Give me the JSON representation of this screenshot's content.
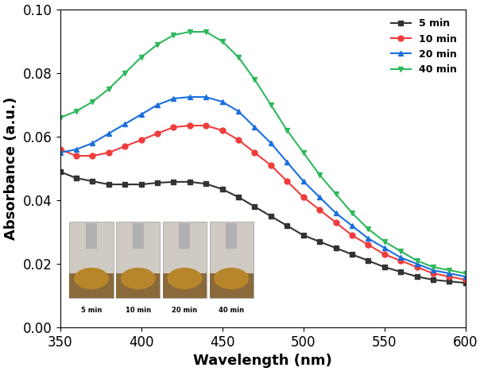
{
  "chart_data": {
    "type": "line",
    "x_label": "Wavelength (nm)",
    "y_label": "Absorbance (a.u.)",
    "x": [
      350,
      360,
      370,
      380,
      390,
      400,
      410,
      420,
      430,
      440,
      450,
      460,
      470,
      480,
      490,
      500,
      510,
      520,
      530,
      540,
      550,
      560,
      570,
      580,
      590,
      600
    ],
    "series": [
      {
        "name": "5 min",
        "color": "#333333",
        "marker": "square",
        "values": [
          0.049,
          0.047,
          0.046,
          0.045,
          0.045,
          0.045,
          0.0455,
          0.0458,
          0.0458,
          0.0452,
          0.0435,
          0.041,
          0.038,
          0.035,
          0.032,
          0.029,
          0.027,
          0.025,
          0.023,
          0.021,
          0.019,
          0.0175,
          0.016,
          0.015,
          0.0145,
          0.014
        ]
      },
      {
        "name": "10 min",
        "color": "#f03c3c",
        "marker": "circle",
        "values": [
          0.056,
          0.054,
          0.054,
          0.055,
          0.057,
          0.059,
          0.061,
          0.063,
          0.0635,
          0.0635,
          0.062,
          0.059,
          0.055,
          0.051,
          0.046,
          0.041,
          0.037,
          0.033,
          0.029,
          0.026,
          0.023,
          0.021,
          0.019,
          0.017,
          0.016,
          0.015
        ]
      },
      {
        "name": "20 min",
        "color": "#1a6fdf",
        "marker": "triangle_up",
        "values": [
          0.055,
          0.056,
          0.058,
          0.061,
          0.064,
          0.067,
          0.07,
          0.072,
          0.0725,
          0.0725,
          0.071,
          0.068,
          0.063,
          0.058,
          0.052,
          0.046,
          0.041,
          0.036,
          0.032,
          0.028,
          0.025,
          0.022,
          0.02,
          0.018,
          0.017,
          0.016
        ]
      },
      {
        "name": "40 min",
        "color": "#2eb85c",
        "marker": "triangle_down",
        "values": [
          0.066,
          0.068,
          0.071,
          0.075,
          0.08,
          0.085,
          0.089,
          0.092,
          0.093,
          0.093,
          0.09,
          0.085,
          0.078,
          0.07,
          0.062,
          0.055,
          0.048,
          0.042,
          0.036,
          0.031,
          0.027,
          0.024,
          0.021,
          0.019,
          0.018,
          0.017
        ]
      }
    ],
    "annotations": [
      "5 min",
      "10 min",
      "20 min",
      "40 min"
    ],
    "xlim": [
      350,
      600
    ],
    "xticks": [
      350,
      400,
      450,
      500,
      550,
      600
    ],
    "ylim": [
      0,
      0.1
    ],
    "yticks": [
      {
        "value": 0,
        "label": "0.00"
      },
      {
        "value": 0.02,
        "label": "0.02"
      },
      {
        "value": 0.04,
        "label": "0.04"
      },
      {
        "value": 0.06,
        "label": "0.06"
      },
      {
        "value": 0.08,
        "label": "0.08"
      },
      {
        "value": 0.1,
        "label": "0.10"
      }
    ],
    "legend": "upper right",
    "grid": false
  }
}
